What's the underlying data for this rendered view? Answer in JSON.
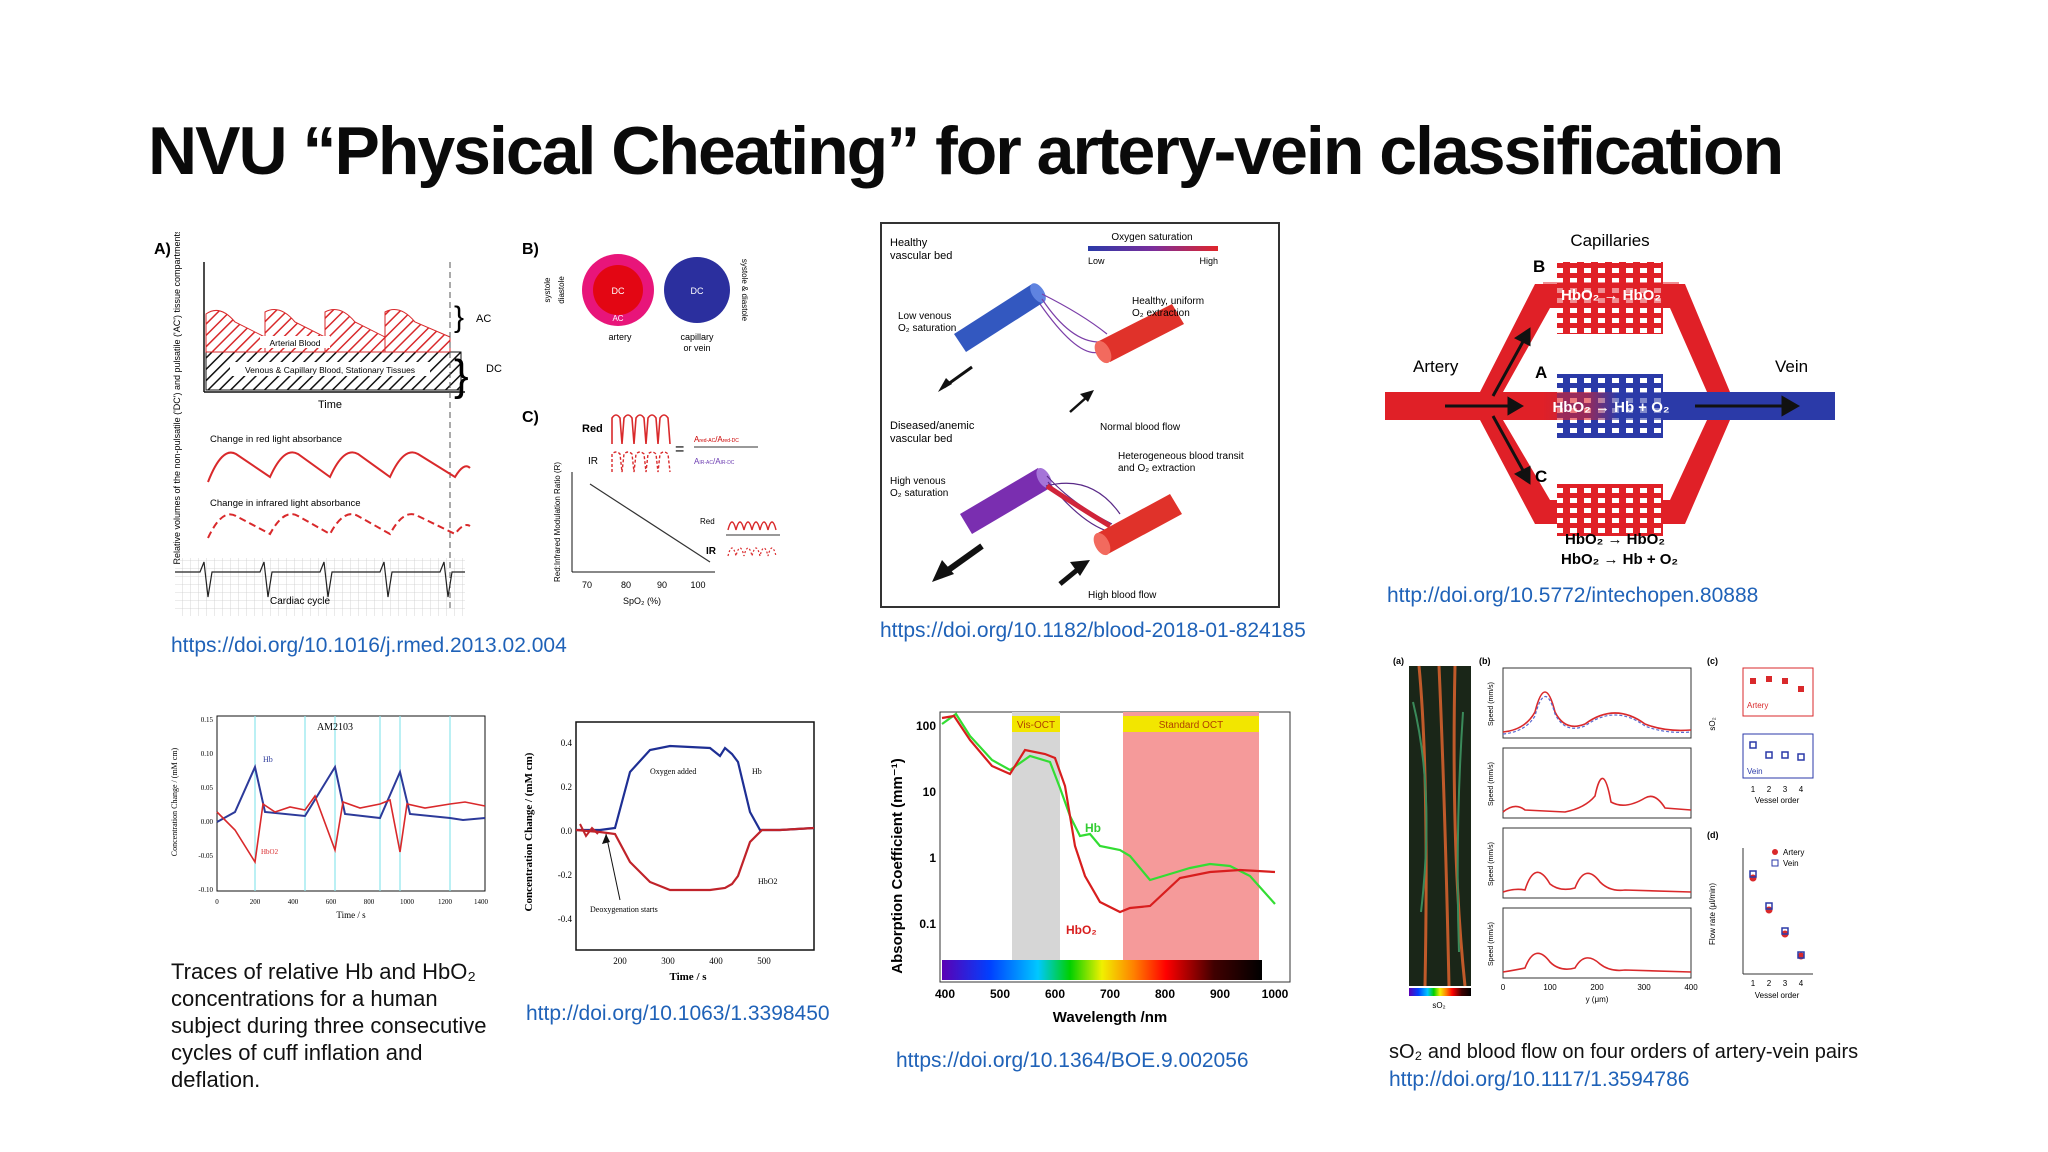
{
  "title": "NVU “Physical Cheating” for artery-vein classification",
  "pulse_figure": {
    "panel_a": "A)",
    "panel_b": "B)",
    "panel_c": "C)",
    "y_axis_label": "Relative volumes of the non-pulsatile ('DC') and pulsatile ('AC') tissue compartments",
    "arterial_blood": "Arterial Blood",
    "venous_blood": "Venous & Capillary Blood, Stationary Tissues",
    "ac": "AC",
    "dc": "DC",
    "time": "Time",
    "red_absorbance": "Change in red light absorbance",
    "ir_absorbance": "Change in infrared light absorbance",
    "cardiac_cycle": "Cardiac cycle",
    "systole": "systole",
    "diastole": "diastole",
    "systole_diastole": "systole & diastole",
    "artery": "artery",
    "capillary_vein_1": "capillary",
    "capillary_vein_2": "or vein",
    "red": "Red",
    "ir": "IR",
    "ratio_num": "A",
    "ratio_y_label": "Red:Infrared Modulation Ratio (R)",
    "spo2_label": "SpO₂ (%)",
    "spo2_ticks": [
      "70",
      "80",
      "90",
      "100"
    ]
  },
  "link1": "https://doi.org/10.1016/j.rmed.2013.02.004",
  "vessel_figure": {
    "healthy_bed": "Healthy",
    "healthy_bed_2": "vascular bed",
    "oxygen_saturation": "Oxygen saturation",
    "low": "Low",
    "high": "High",
    "healthy_uniform": "Healthy, uniform",
    "o2_extraction": "O₂ extraction",
    "low_venous": "Low venous",
    "o2_saturation": "O₂ saturation",
    "normal_flow": "Normal blood flow",
    "diseased_bed": "Diseased/anemic",
    "diseased_bed_2": "vascular bed",
    "heterogeneous": "Heterogeneous blood transit",
    "heterogeneous_2": "and O₂ extraction",
    "high_venous": "High venous",
    "high_flow": "High blood flow"
  },
  "link2": "https://doi.org/10.1182/blood-2018-01-824185",
  "capillary_figure": {
    "capillaries": "Capillaries",
    "artery": "Artery",
    "vein": "Vein",
    "label_a": "A",
    "label_b": "B",
    "label_c": "C",
    "eq_b": "HbO₂ → HbO₂",
    "eq_a": "HbO₂ → Hb + O₂",
    "eq_c1": "HbO₂ → HbO₂",
    "eq_c2": "HbO₂ → Hb + O₂"
  },
  "link3": "http://doi.org/10.5772/intechopen.80888",
  "concentration_figure": {
    "label": "AM2103",
    "hb": "Hb",
    "hbo2": "HbO2",
    "y_label": "Concentration Change / (mM cm)",
    "x_label": "Time / s",
    "x_ticks": [
      "0",
      "200",
      "400",
      "600",
      "800",
      "1000",
      "1200",
      "1400"
    ],
    "y_ticks": [
      "0.15",
      "0.10",
      "0.05",
      "0.00",
      "-0.05",
      "-0.10"
    ]
  },
  "caption_left": "Traces of relative Hb and HbO₂ concentrations for a human subject during three consecutive cycles of cuff inflation and deflation.",
  "oxygen_figure": {
    "oxygen_added": "Oxygen added",
    "deoxygenation": "Deoxygenation starts",
    "hb": "Hb",
    "hbo2": "HbO2",
    "y_label": "Concentration Change / (mM cm)",
    "x_label": "Time / s",
    "x_ticks": [
      "200",
      "300",
      "400",
      "500"
    ],
    "y_ticks": [
      "0.4",
      "0.2",
      "0.0",
      "-0.2",
      "-0.4"
    ]
  },
  "link4": "http://doi.org/10.1063/1.3398450",
  "absorption_figure": {
    "vis_oct": "Vis-OCT",
    "standard_oct": "Standard OCT",
    "hb": "Hb",
    "hbo2": "HbO₂",
    "y_label": "Absorption Coefficient (mm⁻¹)",
    "x_label": "Wavelength /nm",
    "x_ticks": [
      "400",
      "500",
      "600",
      "700",
      "800",
      "900",
      "1000"
    ],
    "y_ticks": [
      "100",
      "10",
      "1",
      "0.1"
    ]
  },
  "link5": "https://doi.org/10.1364/BOE.9.002056",
  "flow_figure": {
    "panel_a": "(a)",
    "panel_b": "(b)",
    "panel_c": "(c)",
    "panel_d": "(d)",
    "speed_label": "Speed (mm/s)",
    "y_um": "y (μm)",
    "so2": "sO₂",
    "artery": "Artery",
    "vein": "Vein",
    "vessel_order": "Vessel order",
    "flow_rate": "Flow rate (μl/min)",
    "order_ticks": [
      "1",
      "2",
      "3",
      "4"
    ],
    "y_ticks": [
      "0",
      "100",
      "200",
      "300",
      "400"
    ]
  },
  "caption_right": "sO₂ and blood flow on four orders of artery-vein pairs",
  "link6": "http://doi.org/10.1117/1.3594786",
  "colors": {
    "link": "#1f62b8",
    "red": "#d9292b",
    "blue": "#2f3aa0",
    "pink_band": "#f59a9a"
  }
}
